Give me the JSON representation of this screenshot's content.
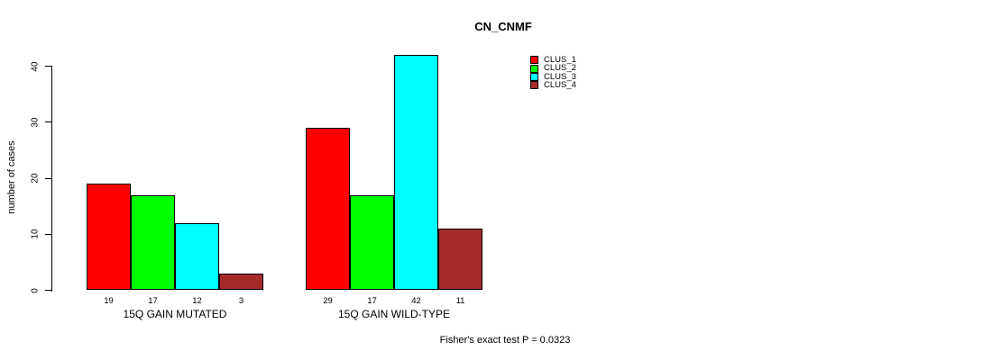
{
  "chart_data": {
    "type": "bar",
    "title": "CN_CNMF",
    "ylabel": "number of cases",
    "xlabel": "",
    "ylim": [
      0,
      40
    ],
    "yticks": [
      0,
      10,
      20,
      30,
      40
    ],
    "grid": false,
    "legend_position": "right",
    "bar_border_color": "#000000",
    "background_color": "#ffffff",
    "categories": [
      "15Q GAIN MUTATED",
      "15Q GAIN WILD-TYPE"
    ],
    "groups": [
      {
        "label": "15Q GAIN MUTATED",
        "values": [
          19,
          17,
          12,
          3
        ]
      },
      {
        "label": "15Q GAIN WILD-TYPE",
        "values": [
          29,
          17,
          42,
          11
        ]
      }
    ],
    "series": [
      {
        "name": "CLUS_1",
        "color": "#ff0000"
      },
      {
        "name": "CLUS_2",
        "color": "#00ff00"
      },
      {
        "name": "CLUS_3",
        "color": "#00ffff"
      },
      {
        "name": "CLUS_4",
        "color": "#a52a2a"
      }
    ],
    "bar_value_labels": [
      19,
      17,
      12,
      3,
      29,
      17,
      42,
      11
    ],
    "annotation": "Fisher's exact test P = 0.0323"
  }
}
